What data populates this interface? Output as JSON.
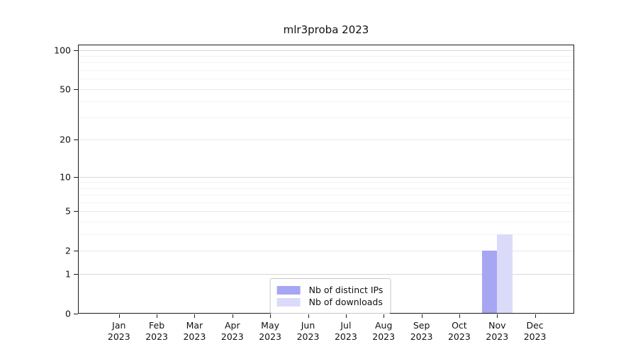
{
  "title": "mlr3proba 2023",
  "chart_data": {
    "type": "bar",
    "title": "mlr3proba 2023",
    "x_axis": {
      "categories": [
        "Jan",
        "Feb",
        "Mar",
        "Apr",
        "May",
        "Jun",
        "Jul",
        "Aug",
        "Sep",
        "Oct",
        "Nov",
        "Dec"
      ],
      "year": "2023"
    },
    "y_axis": {
      "scale": "log10(value+1)",
      "ticks": [
        0,
        1,
        2,
        5,
        10,
        20,
        50,
        100
      ],
      "top_value": 110,
      "gridlines": {
        "major": [
          1,
          10,
          100
        ],
        "mid": [
          2,
          5,
          20,
          50
        ],
        "minor": [
          3,
          4,
          6,
          7,
          8,
          9,
          30,
          40,
          60,
          70,
          80,
          90
        ]
      },
      "grid": true
    },
    "series": [
      {
        "id": "distinct-ips",
        "name": "Nb of distinct IPs",
        "color": "#a6a6f3",
        "values": [
          0,
          0,
          0,
          0,
          0,
          0,
          0,
          0,
          0,
          0,
          2,
          0
        ]
      },
      {
        "id": "downloads",
        "name": "Nb of downloads",
        "color": "#dbdbf9",
        "values": [
          0,
          0,
          0,
          0,
          0,
          0,
          0,
          0,
          0,
          0,
          3,
          0
        ]
      }
    ],
    "legend_position": "bottom-center"
  }
}
